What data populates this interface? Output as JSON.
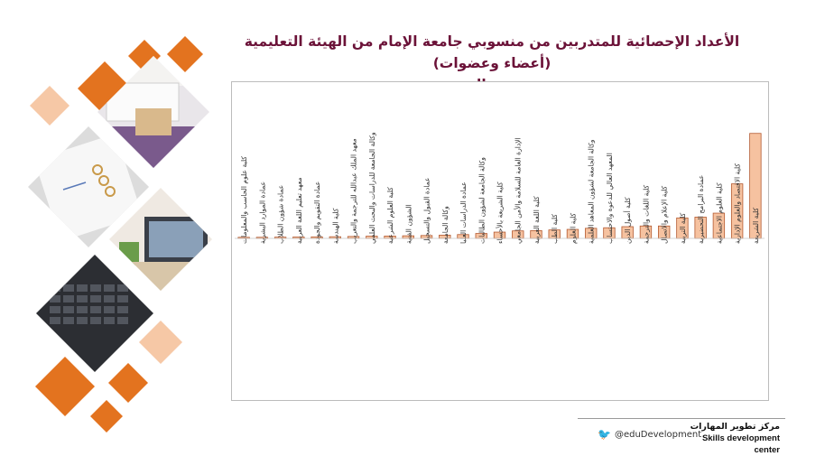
{
  "title": {
    "line1": "الأعداد الإحصائية للمتدربين من منسوبي جامعة الإمام من الهيئة التعليمية (أعضاء وعضوات)",
    "line2": "بحسب الجهة"
  },
  "footer": {
    "twitter_handle": "@eduDevelopment",
    "center_name_ar": "مركز تطوير المهارات",
    "center_name_en": "Skills development center"
  },
  "colors": {
    "bar_fill": "#f6c2a0",
    "bar_stroke": "#b45a30",
    "title": "#6b1238",
    "deco_orange": "#e3731f",
    "deco_light": "#f6c8a6"
  },
  "chart_data": {
    "type": "bar",
    "title": "الأعداد الإحصائية للمتدربين من منسوبي جامعة الإمام من الهيئة التعليمية (أعضاء وعضوات) بحسب الجهة",
    "xlabel": "",
    "ylabel": "",
    "grid": false,
    "legend": "none",
    "ylim": [
      0,
      100
    ],
    "categories": [
      "كلية علوم الحاسب والمعلومات",
      "عمادة الموارد البشرية",
      "عمادة شؤون الطلاب",
      "معهد تعليم اللغة العربية",
      "عمادة التقويم والجودة",
      "كلية الهندسة",
      "معهد الملك عبدالله للترجمة والتعريب",
      "وكالة الجامعة للدراسات والبحث العلمي",
      "كلية العلوم الشرعية",
      "الشؤون الفنية",
      "عمادة القبول والتسجيل",
      "وكالة الجامعة",
      "عمادة الدراسات العليا",
      "وكالة الجامعة لشؤون الطالبات",
      "كلية الشريعة بالأحساء",
      "الإدارة العامة للسلامة والأمن الجامعي",
      "كلية اللغة العربية",
      "كلية الطب",
      "كلية العلوم",
      "وكالة الجامعة لشؤون المعاهد العلمية",
      "المعهد العالي للدعوة والاحتساب",
      "كلية أصول الدين",
      "كلية اللغات والترجمة",
      "كلية الإعلام والاتصال",
      "كلية التربية",
      "عمادة البرامج التحضيرية",
      "كلية العلوم الاجتماعية",
      "كلية الاقتصاد والعلوم الإدارية",
      "كلية الشريعة"
    ],
    "values": [
      0.6,
      0.8,
      0.9,
      1,
      1.1,
      1.2,
      1.4,
      1.6,
      1.7,
      1.9,
      2.1,
      2.4,
      2.8,
      3.6,
      4.6,
      5.5,
      5.7,
      6.2,
      6.6,
      7.4,
      7.8,
      8.6,
      9.1,
      9.1,
      15,
      15.6,
      18.5,
      40,
      77
    ]
  }
}
